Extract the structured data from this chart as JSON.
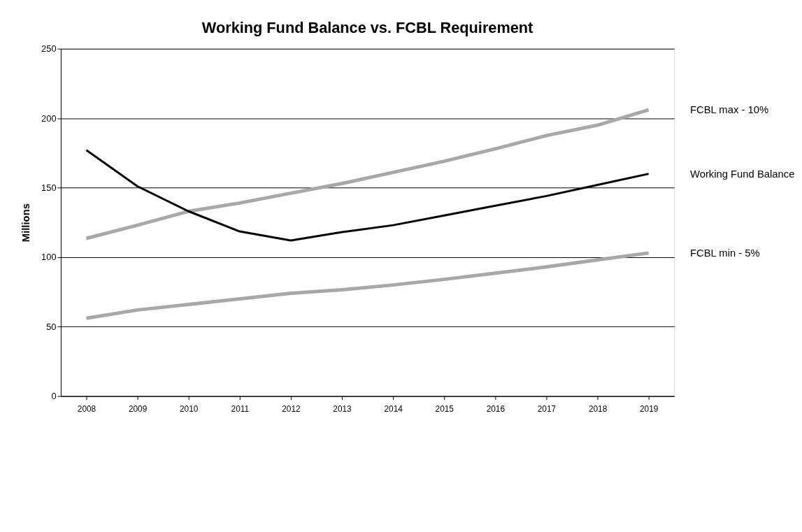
{
  "chart_data": {
    "type": "line",
    "title": "Working Fund Balance vs. FCBL Requirement",
    "ylabel": "Millions",
    "categories": [
      "2008",
      "2009",
      "2010",
      "2011",
      "2012",
      "2013",
      "2014",
      "2015",
      "2016",
      "2017",
      "2018",
      "2019"
    ],
    "series": [
      {
        "name": "FCBL max - 10%",
        "color": "#a8a8a8",
        "values": [
          113.5,
          123,
          133,
          139,
          146,
          153,
          161,
          169,
          178,
          187.5,
          195,
          206
        ]
      },
      {
        "name": "Working Fund Balance",
        "color": "#000000",
        "values": [
          177,
          151,
          133,
          118.5,
          112,
          118,
          123,
          130,
          137,
          144,
          152,
          160
        ]
      },
      {
        "name": "FCBL min - 5%",
        "color": "#a8a8a8",
        "values": [
          56,
          62,
          66,
          70,
          74,
          76.5,
          80,
          84,
          88.5,
          93,
          98,
          103
        ]
      }
    ],
    "ylim": [
      0,
      250
    ],
    "yticks": [
      0,
      50,
      100,
      150,
      200,
      250
    ],
    "grid": "y",
    "legend": false,
    "marker": "none",
    "line_style": "solid"
  }
}
